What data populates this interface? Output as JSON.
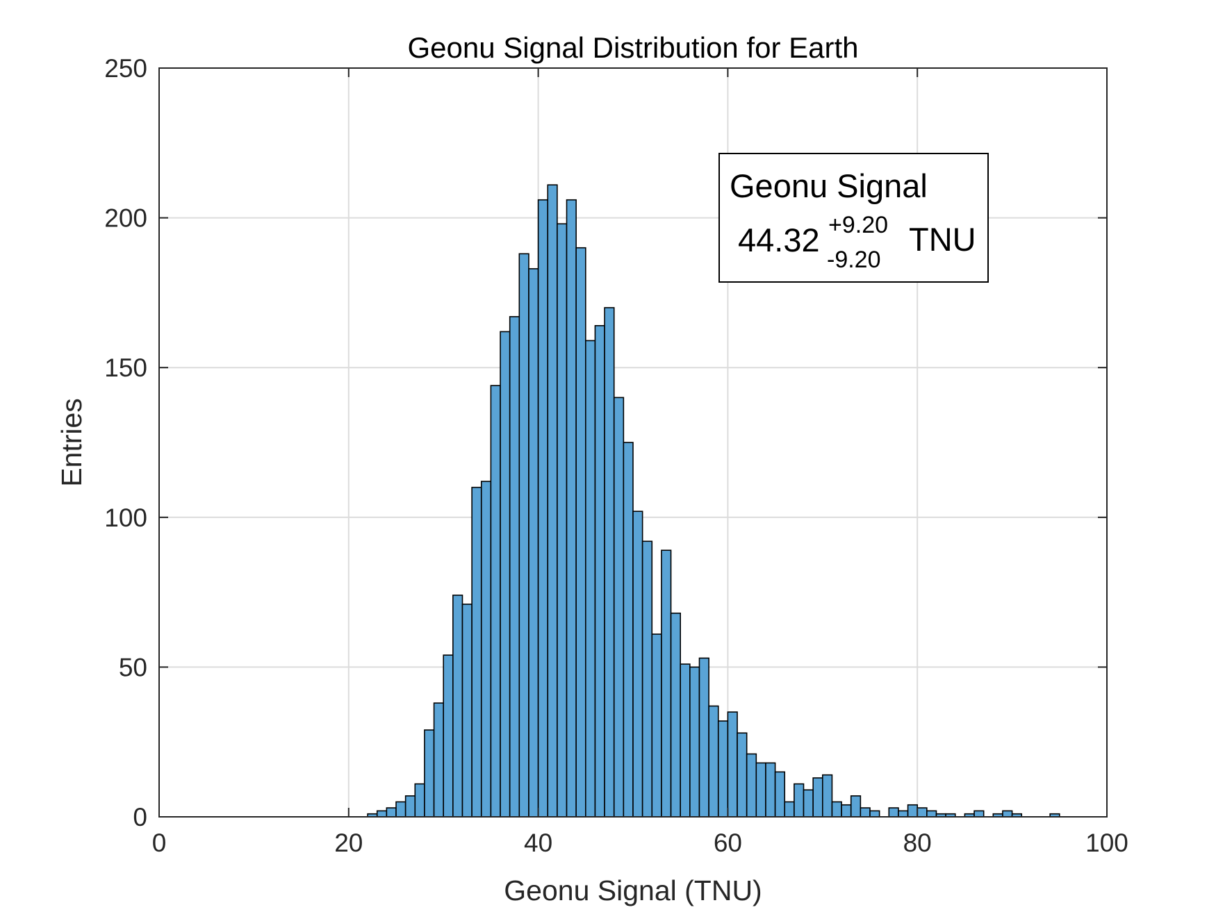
{
  "chart_data": {
    "type": "bar",
    "title": "Geonu Signal Distribution for Earth",
    "xlabel": "Geonu Signal (TNU)",
    "ylabel": "Entries",
    "xlim": [
      0,
      100
    ],
    "ylim": [
      0,
      250
    ],
    "xticks": [
      "0",
      "20",
      "40",
      "60",
      "80",
      "100"
    ],
    "yticks": [
      "0",
      "50",
      "100",
      "150",
      "200",
      "250"
    ],
    "grid": true,
    "bin_start": 22,
    "bin_width": 1,
    "bar_color": "#5aa4d6",
    "edge_color": "#000000",
    "values": [
      1,
      2,
      3,
      5,
      7,
      11,
      29,
      38,
      54,
      74,
      71,
      110,
      112,
      144,
      162,
      167,
      188,
      183,
      206,
      211,
      198,
      206,
      190,
      159,
      164,
      170,
      140,
      125,
      102,
      92,
      61,
      89,
      68,
      51,
      50,
      53,
      37,
      32,
      35,
      28,
      21,
      18,
      18,
      15,
      5,
      11,
      9,
      13,
      14,
      5,
      4,
      7,
      3,
      2,
      0,
      3,
      2,
      4,
      3,
      2,
      1,
      1,
      0,
      1,
      2,
      0,
      1,
      2,
      1,
      0,
      0,
      0,
      1,
      0,
      0,
      0
    ],
    "annotation": {
      "title": "Geonu Signal",
      "value": "44.32",
      "plus": "+9.20",
      "minus": "-9.20",
      "unit": "TNU"
    }
  }
}
